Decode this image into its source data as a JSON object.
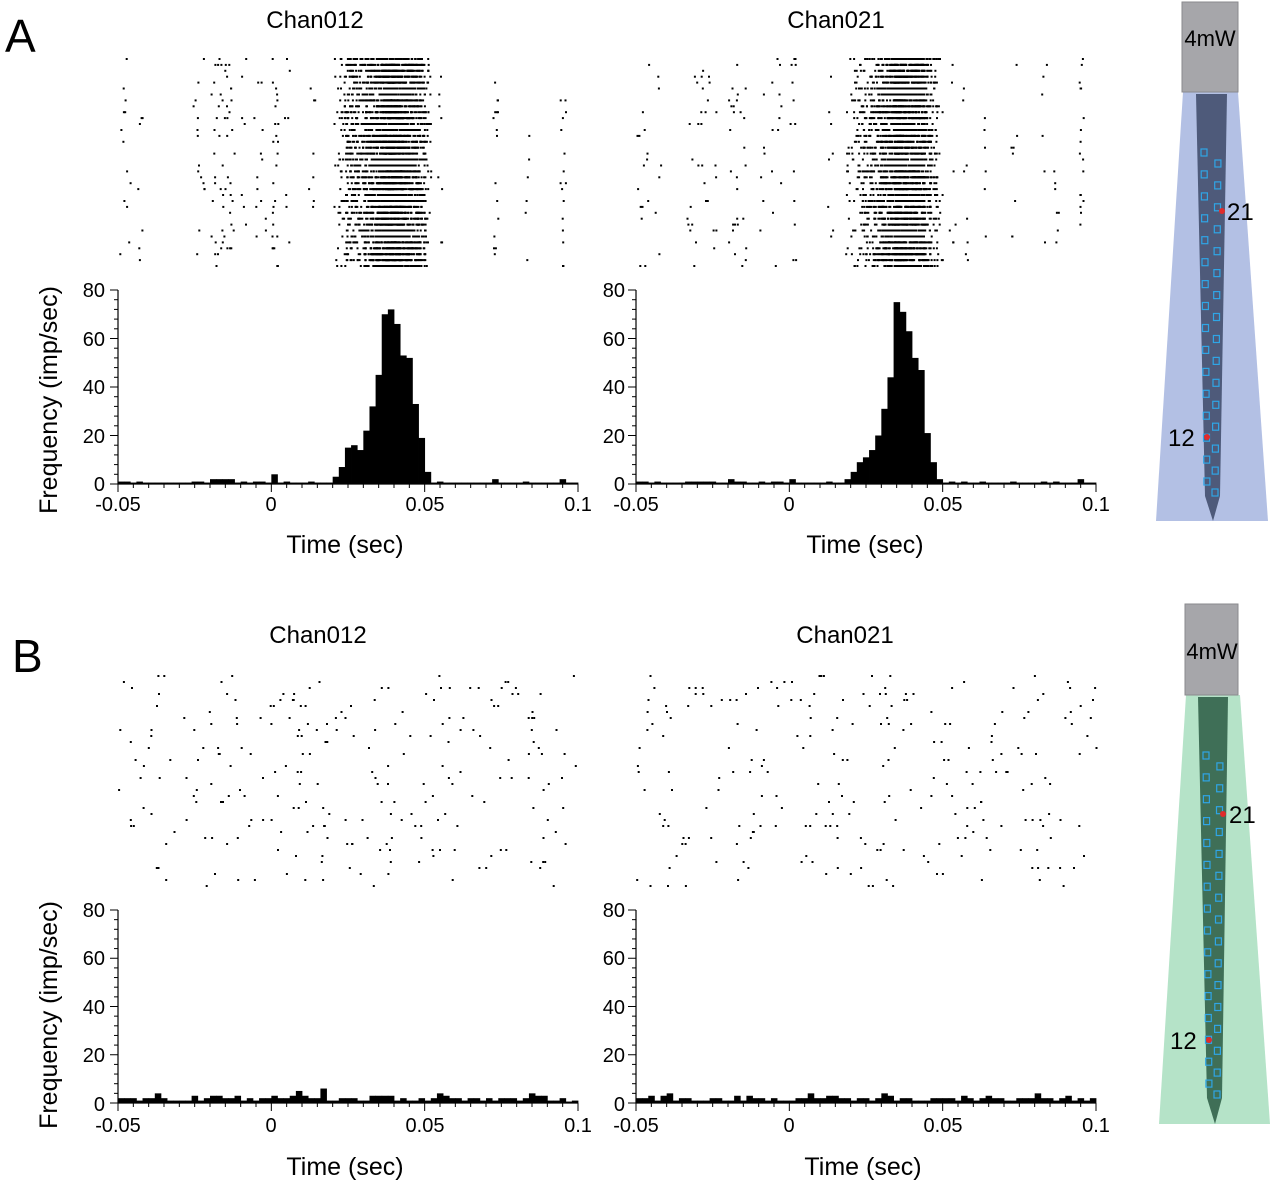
{
  "panels": [
    {
      "letter": "A",
      "light_power": "4mW",
      "light_color": "#b3c0e4",
      "probe_color": "#4e5a7a",
      "charts": [
        {
          "title": "Chan012",
          "chart_data": {
            "type": "bar",
            "title": "Chan012",
            "xlabel": "Time (sec)",
            "ylabel": "Frequency (imp/sec)",
            "xlim": [
              -0.05,
              0.1
            ],
            "ylim": [
              0,
              80
            ],
            "xticks": [
              -0.05,
              0,
              0.05,
              0.1
            ],
            "xtick_labels": [
              "-0.05",
              "0",
              "0.05",
              "0.1"
            ],
            "yticks": [
              0,
              20,
              40,
              60,
              80
            ],
            "ytick_labels": [
              "0",
              "20",
              "40",
              "60",
              "80"
            ],
            "bin_width": 0.002,
            "bin_start": -0.05,
            "values": [
              1,
              1,
              0,
              1,
              0,
              0,
              0,
              0,
              0,
              0,
              0,
              0,
              1,
              1,
              0,
              2,
              2,
              2,
              2,
              0,
              1,
              0,
              1,
              1,
              0,
              4,
              0,
              1,
              0,
              0,
              0,
              1,
              0,
              0,
              0,
              3,
              7,
              15,
              16,
              14,
              22,
              32,
              45,
              70,
              72,
              66,
              53,
              52,
              33,
              19,
              5,
              0,
              1,
              0,
              0,
              0,
              0,
              0,
              0,
              0,
              0,
              2,
              0,
              0,
              0,
              0,
              1,
              0,
              0,
              0,
              0,
              0,
              2,
              0,
              0
            ]
          },
          "raster_seed": 12,
          "raster_mode": "evoked"
        },
        {
          "title": "Chan021",
          "chart_data": {
            "type": "bar",
            "title": "Chan021",
            "xlabel": "Time (sec)",
            "ylabel": "Frequency (imp/sec)",
            "xlim": [
              -0.05,
              0.1
            ],
            "ylim": [
              0,
              80
            ],
            "xticks": [
              -0.05,
              0,
              0.05,
              0.1
            ],
            "xtick_labels": [
              "-0.05",
              "0",
              "0.05",
              "0.1"
            ],
            "yticks": [
              0,
              20,
              40,
              60,
              80
            ],
            "ytick_labels": [
              "0",
              "20",
              "40",
              "60",
              "80"
            ],
            "bin_width": 0.002,
            "bin_start": -0.05,
            "values": [
              1,
              1,
              0,
              1,
              0,
              0,
              0,
              0,
              1,
              1,
              1,
              1,
              1,
              0,
              0,
              2,
              1,
              1,
              0,
              0,
              1,
              0,
              1,
              1,
              0,
              2,
              0,
              0,
              0,
              0,
              0,
              1,
              0,
              0,
              2,
              5,
              9,
              11,
              14,
              20,
              31,
              44,
              75,
              71,
              63,
              52,
              47,
              21,
              9,
              2,
              0,
              1,
              0,
              1,
              0,
              0,
              1,
              0,
              0,
              0,
              0,
              1,
              0,
              0,
              0,
              0,
              1,
              0,
              1,
              0,
              0,
              0,
              2,
              0,
              0
            ]
          },
          "raster_seed": 21,
          "raster_mode": "evoked"
        }
      ],
      "probe_sites": {
        "upper": "21",
        "lower": "12"
      }
    },
    {
      "letter": "B",
      "light_power": "4mW",
      "light_color": "#b5e3c8",
      "probe_color": "#3f6f57",
      "charts": [
        {
          "title": "Chan012",
          "chart_data": {
            "type": "bar",
            "title": "Chan012",
            "xlabel": "Time (sec)",
            "ylabel": "Frequency (imp/sec)",
            "xlim": [
              -0.05,
              0.1
            ],
            "ylim": [
              0,
              80
            ],
            "xticks": [
              -0.05,
              0,
              0.05,
              0.1
            ],
            "xtick_labels": [
              "-0.05",
              "0",
              "0.05",
              "0.1"
            ],
            "yticks": [
              0,
              20,
              40,
              60,
              80
            ],
            "ytick_labels": [
              "0",
              "20",
              "40",
              "60",
              "80"
            ],
            "bin_width": 0.002,
            "bin_start": -0.05,
            "values": [
              2,
              2,
              2,
              1,
              2,
              2,
              4,
              2,
              1,
              1,
              1,
              1,
              3,
              1,
              2,
              3,
              3,
              2,
              2,
              3,
              1,
              2,
              1,
              2,
              2,
              3,
              2,
              2,
              3,
              5,
              3,
              2,
              2,
              6,
              1,
              1,
              2,
              2,
              2,
              1,
              1,
              3,
              3,
              3,
              3,
              1,
              2,
              1,
              1,
              2,
              1,
              2,
              4,
              3,
              2,
              2,
              1,
              2,
              2,
              1,
              2,
              1,
              2,
              2,
              2,
              1,
              2,
              4,
              3,
              3,
              1,
              1,
              2,
              0,
              1
            ]
          },
          "raster_seed": 120,
          "raster_mode": "spontaneous"
        },
        {
          "title": "Chan021",
          "chart_data": {
            "type": "bar",
            "title": "Chan021",
            "xlabel": "Time (sec)",
            "ylabel": "Frequency (imp/sec)",
            "xlim": [
              -0.05,
              0.1
            ],
            "ylim": [
              0,
              80
            ],
            "xticks": [
              -0.05,
              0,
              0.05,
              0.1
            ],
            "xtick_labels": [
              "-0.05",
              "0",
              "0.05",
              "0.1"
            ],
            "yticks": [
              0,
              20,
              40,
              60,
              80
            ],
            "ytick_labels": [
              "0",
              "20",
              "40",
              "60",
              "80"
            ],
            "bin_width": 0.002,
            "bin_start": -0.05,
            "values": [
              2,
              2,
              3,
              1,
              3,
              4,
              1,
              2,
              2,
              1,
              1,
              1,
              2,
              2,
              1,
              1,
              3,
              1,
              3,
              2,
              2,
              1,
              2,
              1,
              1,
              1,
              2,
              2,
              4,
              2,
              2,
              3,
              3,
              2,
              2,
              1,
              2,
              2,
              1,
              2,
              4,
              3,
              1,
              2,
              2,
              1,
              1,
              1,
              2,
              2,
              2,
              2,
              1,
              3,
              2,
              1,
              2,
              3,
              2,
              2,
              1,
              1,
              2,
              2,
              2,
              4,
              2,
              2,
              1,
              2,
              3,
              1,
              2,
              1,
              2
            ]
          },
          "raster_seed": 210,
          "raster_mode": "spontaneous"
        }
      ],
      "probe_sites": {
        "upper": "21",
        "lower": "12"
      }
    }
  ]
}
